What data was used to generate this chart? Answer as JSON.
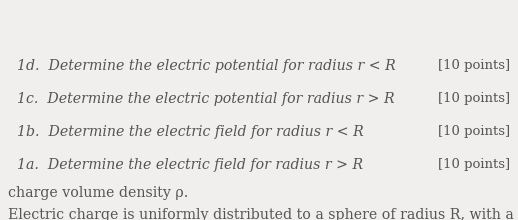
{
  "background_color": "#f0efee",
  "intro_line1": "Electric charge is uniformly distributed to a sphere of radius R, with a",
  "intro_line2": "charge volume density ρ.",
  "items": [
    {
      "full_text": "  1a.  Determine the electric field for radius r > R",
      "points": "[10 points]"
    },
    {
      "full_text": "  1b.  Determine the electric field for radius r < R",
      "points": "[10 points]"
    },
    {
      "full_text": "  1c.  Determine the electric potential for radius r > R",
      "points": "[10 points]"
    },
    {
      "full_text": "  1d.  Determine the electric potential for radius r < R",
      "points": "[10 points]"
    }
  ],
  "intro_fontsize": 10.2,
  "item_fontsize": 10.2,
  "points_fontsize": 9.5,
  "text_color": "#555555",
  "points_color": "#555555",
  "fig_width": 5.18,
  "fig_height": 2.2,
  "dpi": 100
}
